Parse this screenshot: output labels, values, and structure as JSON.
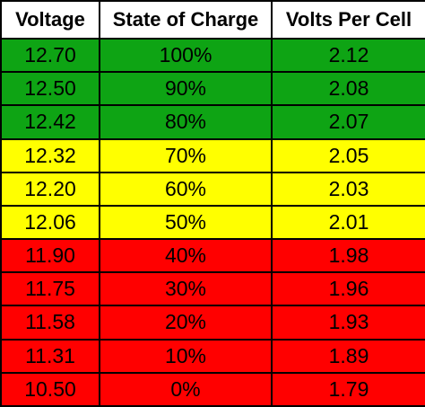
{
  "colors": {
    "green": "#0ea414",
    "yellow": "#ffff00",
    "red": "#ff0000"
  },
  "headers": {
    "voltage": "Voltage",
    "soc": "State of Charge",
    "vpc": "Volts Per Cell"
  },
  "rows": [
    {
      "voltage": "12.70",
      "soc": "100%",
      "vpc": "2.12",
      "band": "green"
    },
    {
      "voltage": "12.50",
      "soc": "90%",
      "vpc": "2.08",
      "band": "green"
    },
    {
      "voltage": "12.42",
      "soc": "80%",
      "vpc": "2.07",
      "band": "green"
    },
    {
      "voltage": "12.32",
      "soc": "70%",
      "vpc": "2.05",
      "band": "yellow"
    },
    {
      "voltage": "12.20",
      "soc": "60%",
      "vpc": "2.03",
      "band": "yellow"
    },
    {
      "voltage": "12.06",
      "soc": "50%",
      "vpc": "2.01",
      "band": "yellow"
    },
    {
      "voltage": "11.90",
      "soc": "40%",
      "vpc": "1.98",
      "band": "red"
    },
    {
      "voltage": "11.75",
      "soc": "30%",
      "vpc": "1.96",
      "band": "red"
    },
    {
      "voltage": "11.58",
      "soc": "20%",
      "vpc": "1.93",
      "band": "red"
    },
    {
      "voltage": "11.31",
      "soc": "10%",
      "vpc": "1.89",
      "band": "red"
    },
    {
      "voltage": "10.50",
      "soc": "0%",
      "vpc": "1.79",
      "band": "red"
    }
  ]
}
